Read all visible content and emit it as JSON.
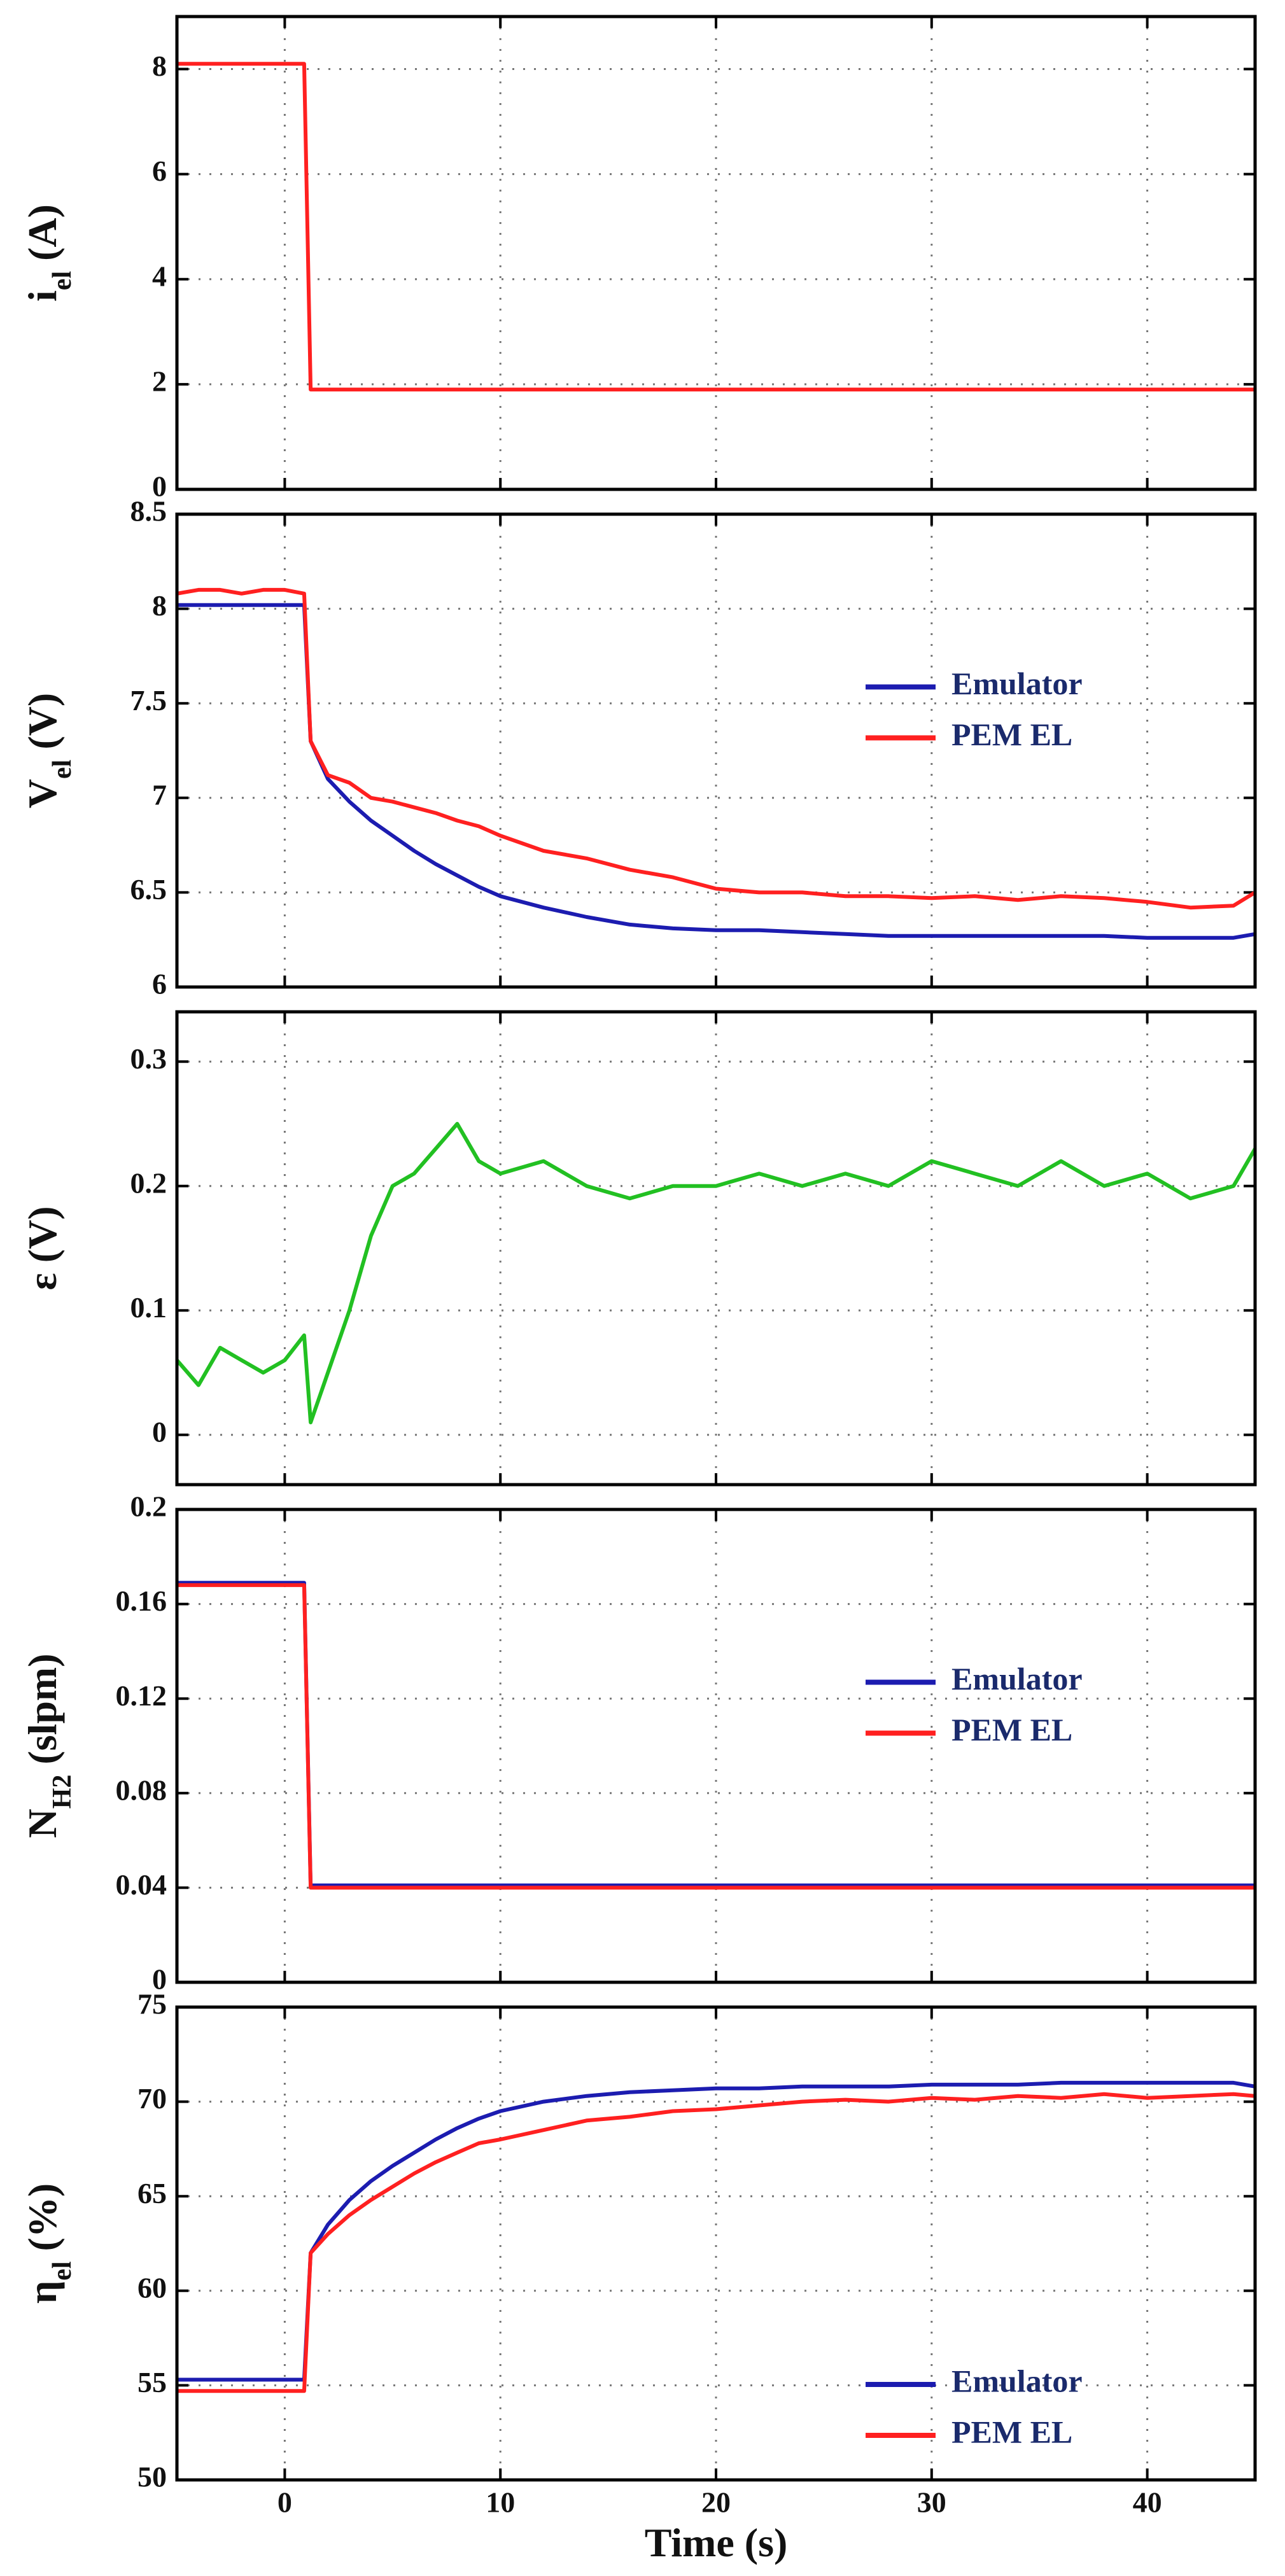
{
  "chart_data": [
    {
      "type": "line",
      "ylabel": [
        {
          "text": "i"
        },
        {
          "text": "el",
          "sub": true
        },
        {
          "text": " (A)"
        }
      ],
      "x": [
        -5,
        -4,
        -3,
        -2,
        -1,
        0,
        0.9,
        1.2,
        2,
        3,
        4,
        5,
        6,
        7,
        8,
        9,
        10,
        12,
        14,
        16,
        18,
        20,
        22,
        24,
        26,
        28,
        30,
        32,
        34,
        36,
        38,
        40,
        42,
        44,
        45
      ],
      "xlim": [
        -5,
        45
      ],
      "xticks": [
        0,
        10,
        20,
        30,
        40
      ],
      "ylim": [
        0,
        9
      ],
      "yticks": [
        0,
        2,
        4,
        6,
        8
      ],
      "grid": true,
      "series": [
        {
          "color": "#ff2020",
          "values": [
            8.1,
            8.1,
            8.1,
            8.1,
            8.1,
            8.1,
            8.1,
            1.9,
            1.9,
            1.9,
            1.9,
            1.9,
            1.9,
            1.9,
            1.9,
            1.9,
            1.9,
            1.9,
            1.9,
            1.9,
            1.9,
            1.9,
            1.9,
            1.9,
            1.9,
            1.9,
            1.9,
            1.9,
            1.9,
            1.9,
            1.9,
            1.9,
            1.9,
            1.9,
            1.9
          ]
        }
      ]
    },
    {
      "type": "line",
      "ylabel": [
        {
          "text": "V"
        },
        {
          "text": "el",
          "sub": true
        },
        {
          "text": " (V)"
        }
      ],
      "x": [
        -5,
        -4,
        -3,
        -2,
        -1,
        0,
        0.9,
        1.2,
        2,
        3,
        4,
        5,
        6,
        7,
        8,
        9,
        10,
        12,
        14,
        16,
        18,
        20,
        22,
        24,
        26,
        28,
        30,
        32,
        34,
        36,
        38,
        40,
        42,
        44,
        45
      ],
      "xlim": [
        -5,
        45
      ],
      "xticks": [
        0,
        10,
        20,
        30,
        40
      ],
      "ylim": [
        6,
        8.5
      ],
      "yticks": [
        6,
        6.5,
        7,
        7.5,
        8,
        8.5
      ],
      "grid": true,
      "legend": "center right",
      "series": [
        {
          "name": "Emulator",
          "color": "#1c1cb0",
          "values": [
            8.02,
            8.02,
            8.02,
            8.02,
            8.02,
            8.02,
            8.02,
            7.3,
            7.1,
            6.98,
            6.88,
            6.8,
            6.72,
            6.65,
            6.59,
            6.53,
            6.48,
            6.42,
            6.37,
            6.33,
            6.31,
            6.3,
            6.3,
            6.29,
            6.28,
            6.27,
            6.27,
            6.27,
            6.27,
            6.27,
            6.27,
            6.26,
            6.26,
            6.26,
            6.28
          ]
        },
        {
          "name": "PEM EL",
          "color": "#ff2020",
          "values": [
            8.08,
            8.1,
            8.1,
            8.08,
            8.1,
            8.1,
            8.08,
            7.3,
            7.12,
            7.08,
            7.0,
            6.98,
            6.95,
            6.92,
            6.88,
            6.85,
            6.8,
            6.72,
            6.68,
            6.62,
            6.58,
            6.52,
            6.5,
            6.5,
            6.48,
            6.48,
            6.47,
            6.48,
            6.46,
            6.48,
            6.47,
            6.45,
            6.42,
            6.43,
            6.5
          ]
        }
      ]
    },
    {
      "type": "line",
      "ylabel": [
        {
          "text": "ε (V)"
        }
      ],
      "x": [
        -5,
        -4,
        -3,
        -2,
        -1,
        0,
        0.9,
        1.2,
        2,
        3,
        4,
        5,
        6,
        7,
        8,
        9,
        10,
        12,
        14,
        16,
        18,
        20,
        22,
        24,
        26,
        28,
        30,
        32,
        34,
        36,
        38,
        40,
        42,
        44,
        45
      ],
      "xlim": [
        -5,
        45
      ],
      "xticks": [
        0,
        10,
        20,
        30,
        40
      ],
      "ylim": [
        -0.04,
        0.34
      ],
      "yticks": [
        0,
        0.1,
        0.2,
        0.3
      ],
      "grid": true,
      "series": [
        {
          "color": "#22c022",
          "values": [
            0.06,
            0.04,
            0.07,
            0.06,
            0.05,
            0.06,
            0.08,
            0.01,
            0.05,
            0.1,
            0.16,
            0.2,
            0.21,
            0.23,
            0.25,
            0.22,
            0.21,
            0.22,
            0.2,
            0.19,
            0.2,
            0.2,
            0.21,
            0.2,
            0.21,
            0.2,
            0.22,
            0.21,
            0.2,
            0.22,
            0.2,
            0.21,
            0.19,
            0.2,
            0.23
          ]
        }
      ]
    },
    {
      "type": "line",
      "ylabel": [
        {
          "text": "N"
        },
        {
          "text": "H2",
          "sub": true
        },
        {
          "text": " (slpm)"
        }
      ],
      "x": [
        -5,
        -4,
        -3,
        -2,
        -1,
        0,
        0.9,
        1.2,
        2,
        3,
        4,
        5,
        6,
        7,
        8,
        9,
        10,
        12,
        14,
        16,
        18,
        20,
        22,
        24,
        26,
        28,
        30,
        32,
        34,
        36,
        38,
        40,
        42,
        44,
        45
      ],
      "xlim": [
        -5,
        45
      ],
      "xticks": [
        0,
        10,
        20,
        30,
        40
      ],
      "ylim": [
        0,
        0.2
      ],
      "yticks": [
        0,
        0.04,
        0.08,
        0.12,
        0.16,
        0.2
      ],
      "grid": true,
      "legend": "center right",
      "series": [
        {
          "name": "Emulator",
          "color": "#1c1cb0",
          "values": [
            0.169,
            0.169,
            0.169,
            0.169,
            0.169,
            0.169,
            0.169,
            0.041,
            0.041,
            0.041,
            0.041,
            0.041,
            0.041,
            0.041,
            0.041,
            0.041,
            0.041,
            0.041,
            0.041,
            0.041,
            0.041,
            0.041,
            0.041,
            0.041,
            0.041,
            0.041,
            0.041,
            0.041,
            0.041,
            0.041,
            0.041,
            0.041,
            0.041,
            0.041,
            0.041
          ]
        },
        {
          "name": "PEM EL",
          "color": "#ff2020",
          "values": [
            0.168,
            0.168,
            0.168,
            0.168,
            0.168,
            0.168,
            0.168,
            0.04,
            0.04,
            0.04,
            0.04,
            0.04,
            0.04,
            0.04,
            0.04,
            0.04,
            0.04,
            0.04,
            0.04,
            0.04,
            0.04,
            0.04,
            0.04,
            0.04,
            0.04,
            0.04,
            0.04,
            0.04,
            0.04,
            0.04,
            0.04,
            0.04,
            0.04,
            0.04,
            0.04
          ]
        }
      ]
    },
    {
      "type": "line",
      "ylabel": [
        {
          "text": "η"
        },
        {
          "text": "el",
          "sub": true
        },
        {
          "text": " (%)"
        }
      ],
      "xlabel": "Time (s)",
      "x": [
        -5,
        -4,
        -3,
        -2,
        -1,
        0,
        0.9,
        1.2,
        2,
        3,
        4,
        5,
        6,
        7,
        8,
        9,
        10,
        12,
        14,
        16,
        18,
        20,
        22,
        24,
        26,
        28,
        30,
        32,
        34,
        36,
        38,
        40,
        42,
        44,
        45
      ],
      "xlim": [
        -5,
        45
      ],
      "xticks": [
        0,
        10,
        20,
        30,
        40
      ],
      "ylim": [
        50,
        75
      ],
      "yticks": [
        50,
        55,
        60,
        65,
        70,
        75
      ],
      "grid": true,
      "legend": "lower right",
      "series": [
        {
          "name": "Emulator",
          "color": "#1c1cb0",
          "values": [
            55.3,
            55.3,
            55.3,
            55.3,
            55.3,
            55.3,
            55.3,
            62,
            63.5,
            64.8,
            65.8,
            66.6,
            67.3,
            68,
            68.6,
            69.1,
            69.5,
            70,
            70.3,
            70.5,
            70.6,
            70.7,
            70.7,
            70.8,
            70.8,
            70.8,
            70.9,
            70.9,
            70.9,
            71,
            71,
            71,
            71,
            71,
            70.8
          ]
        },
        {
          "name": "PEM EL",
          "color": "#ff2020",
          "values": [
            54.7,
            54.7,
            54.7,
            54.7,
            54.7,
            54.7,
            54.7,
            62,
            63,
            64,
            64.8,
            65.5,
            66.2,
            66.8,
            67.3,
            67.8,
            68,
            68.5,
            69,
            69.2,
            69.5,
            69.6,
            69.8,
            70,
            70.1,
            70,
            70.2,
            70.1,
            70.3,
            70.2,
            70.4,
            70.2,
            70.3,
            70.4,
            70.3
          ]
        }
      ]
    }
  ]
}
